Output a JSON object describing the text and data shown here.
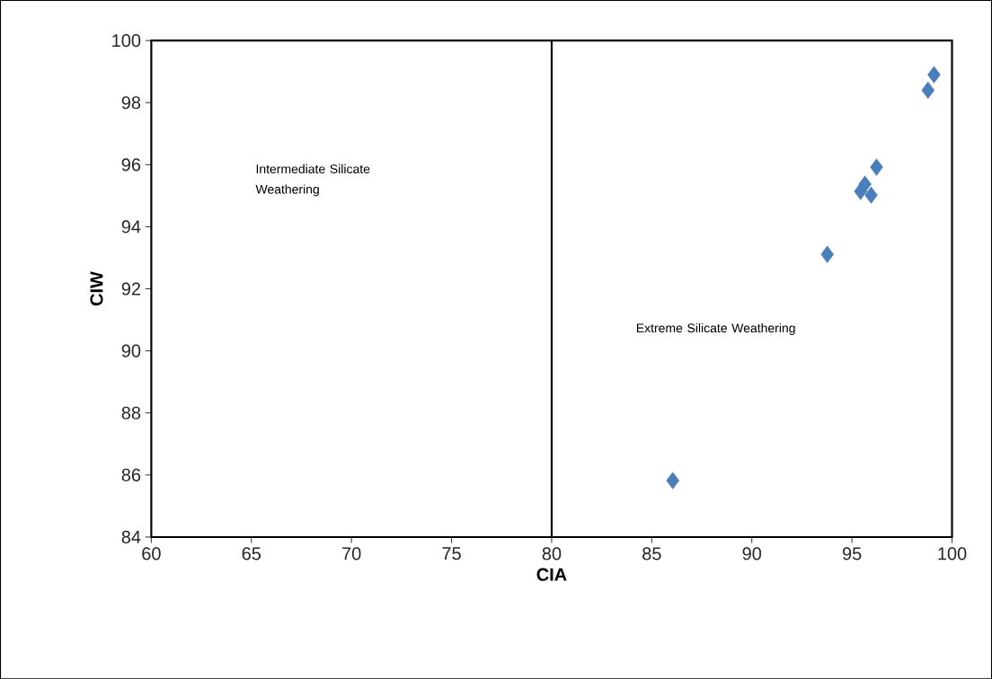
{
  "chart_data": {
    "type": "scatter",
    "xlabel": "CIA",
    "ylabel": "CIW",
    "x": [
      86.05,
      93.77,
      96.23,
      95.65,
      95.43,
      95.96,
      99.1,
      98.8
    ],
    "values": [
      85.82,
      93.11,
      95.92,
      95.37,
      95.14,
      95.02,
      98.9,
      98.4
    ],
    "color": "#4a7ebb",
    "marker": "diamond",
    "xlim": [
      60,
      100
    ],
    "xticks": [
      60,
      65,
      70,
      75,
      80,
      85,
      90,
      95,
      100
    ],
    "ylim": [
      84,
      100
    ],
    "yticks": [
      84,
      86,
      88,
      90,
      92,
      94,
      96,
      98,
      100
    ],
    "ref_lines": [
      {
        "axis": "x",
        "value": 80,
        "color": "#000000"
      }
    ],
    "annotations": [
      "Intermediate Silicate Weathering",
      "Extreme Silicate Weathering"
    ]
  }
}
